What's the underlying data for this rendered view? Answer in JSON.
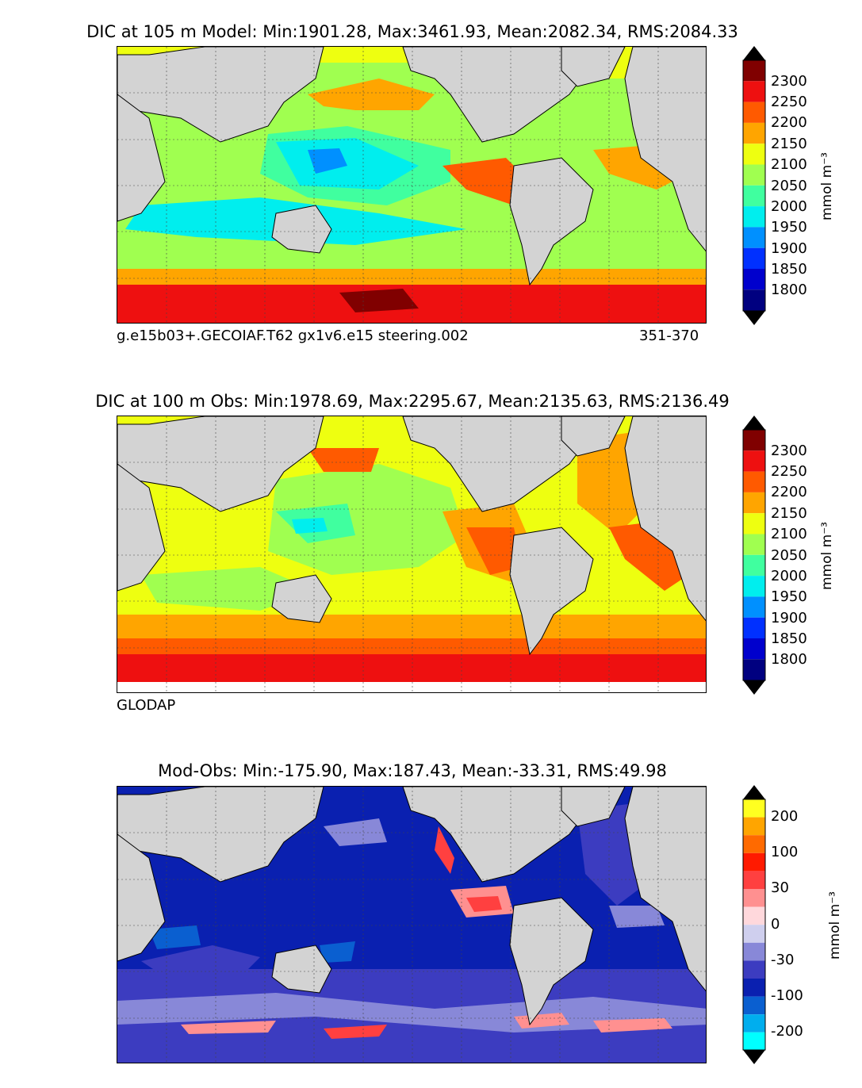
{
  "panels": [
    {
      "title": "DIC at 105 m Model: Min:1901.28, Max:3461.93, Mean:2082.34, RMS:2084.33",
      "footer_left": "g.e15b03+.GECOIAF.T62 gx1v6.e15 steering.002",
      "footer_right": "351-370",
      "unit": "mmol m⁻³",
      "colorbar_ticks": [
        "2300",
        "2250",
        "2200",
        "2150",
        "2100",
        "2050",
        "2000",
        "1950",
        "1900",
        "1850",
        "1800"
      ],
      "palette": [
        "#000080",
        "#0000cd",
        "#0030ff",
        "#0090ff",
        "#00eeee",
        "#40ff9f",
        "#a0ff50",
        "#eeff10",
        "#ffa500",
        "#ff5a00",
        "#ee1010",
        "#800000"
      ]
    },
    {
      "title": "DIC at 100 m Obs: Min:1978.69, Max:2295.67, Mean:2135.63, RMS:2136.49",
      "footer_left": "GLODAP",
      "unit": "mmol m⁻³",
      "colorbar_ticks": [
        "2300",
        "2250",
        "2200",
        "2150",
        "2100",
        "2050",
        "2000",
        "1950",
        "1900",
        "1850",
        "1800"
      ],
      "palette": [
        "#000080",
        "#0000cd",
        "#0030ff",
        "#0090ff",
        "#00eeee",
        "#40ff9f",
        "#a0ff50",
        "#eeff10",
        "#ffa500",
        "#ff5a00",
        "#ee1010",
        "#800000"
      ]
    },
    {
      "title": "Mod-Obs: Min:-175.90, Max:187.43, Mean:-33.31, RMS:49.98",
      "unit": "mmol m⁻³",
      "colorbar_ticks": [
        "200",
        "100",
        "30",
        "0",
        "-30",
        "-100",
        "-200"
      ],
      "palette": [
        "#00ffff",
        "#00aeee",
        "#0a5fd0",
        "#0a20b0",
        "#3c3cc0",
        "#8888d8",
        "#cfcfee",
        "#ffd8dc",
        "#ff9090",
        "#ff4040",
        "#ff1a00",
        "#ff6a00",
        "#ffa500",
        "#ffff20"
      ]
    }
  ]
}
